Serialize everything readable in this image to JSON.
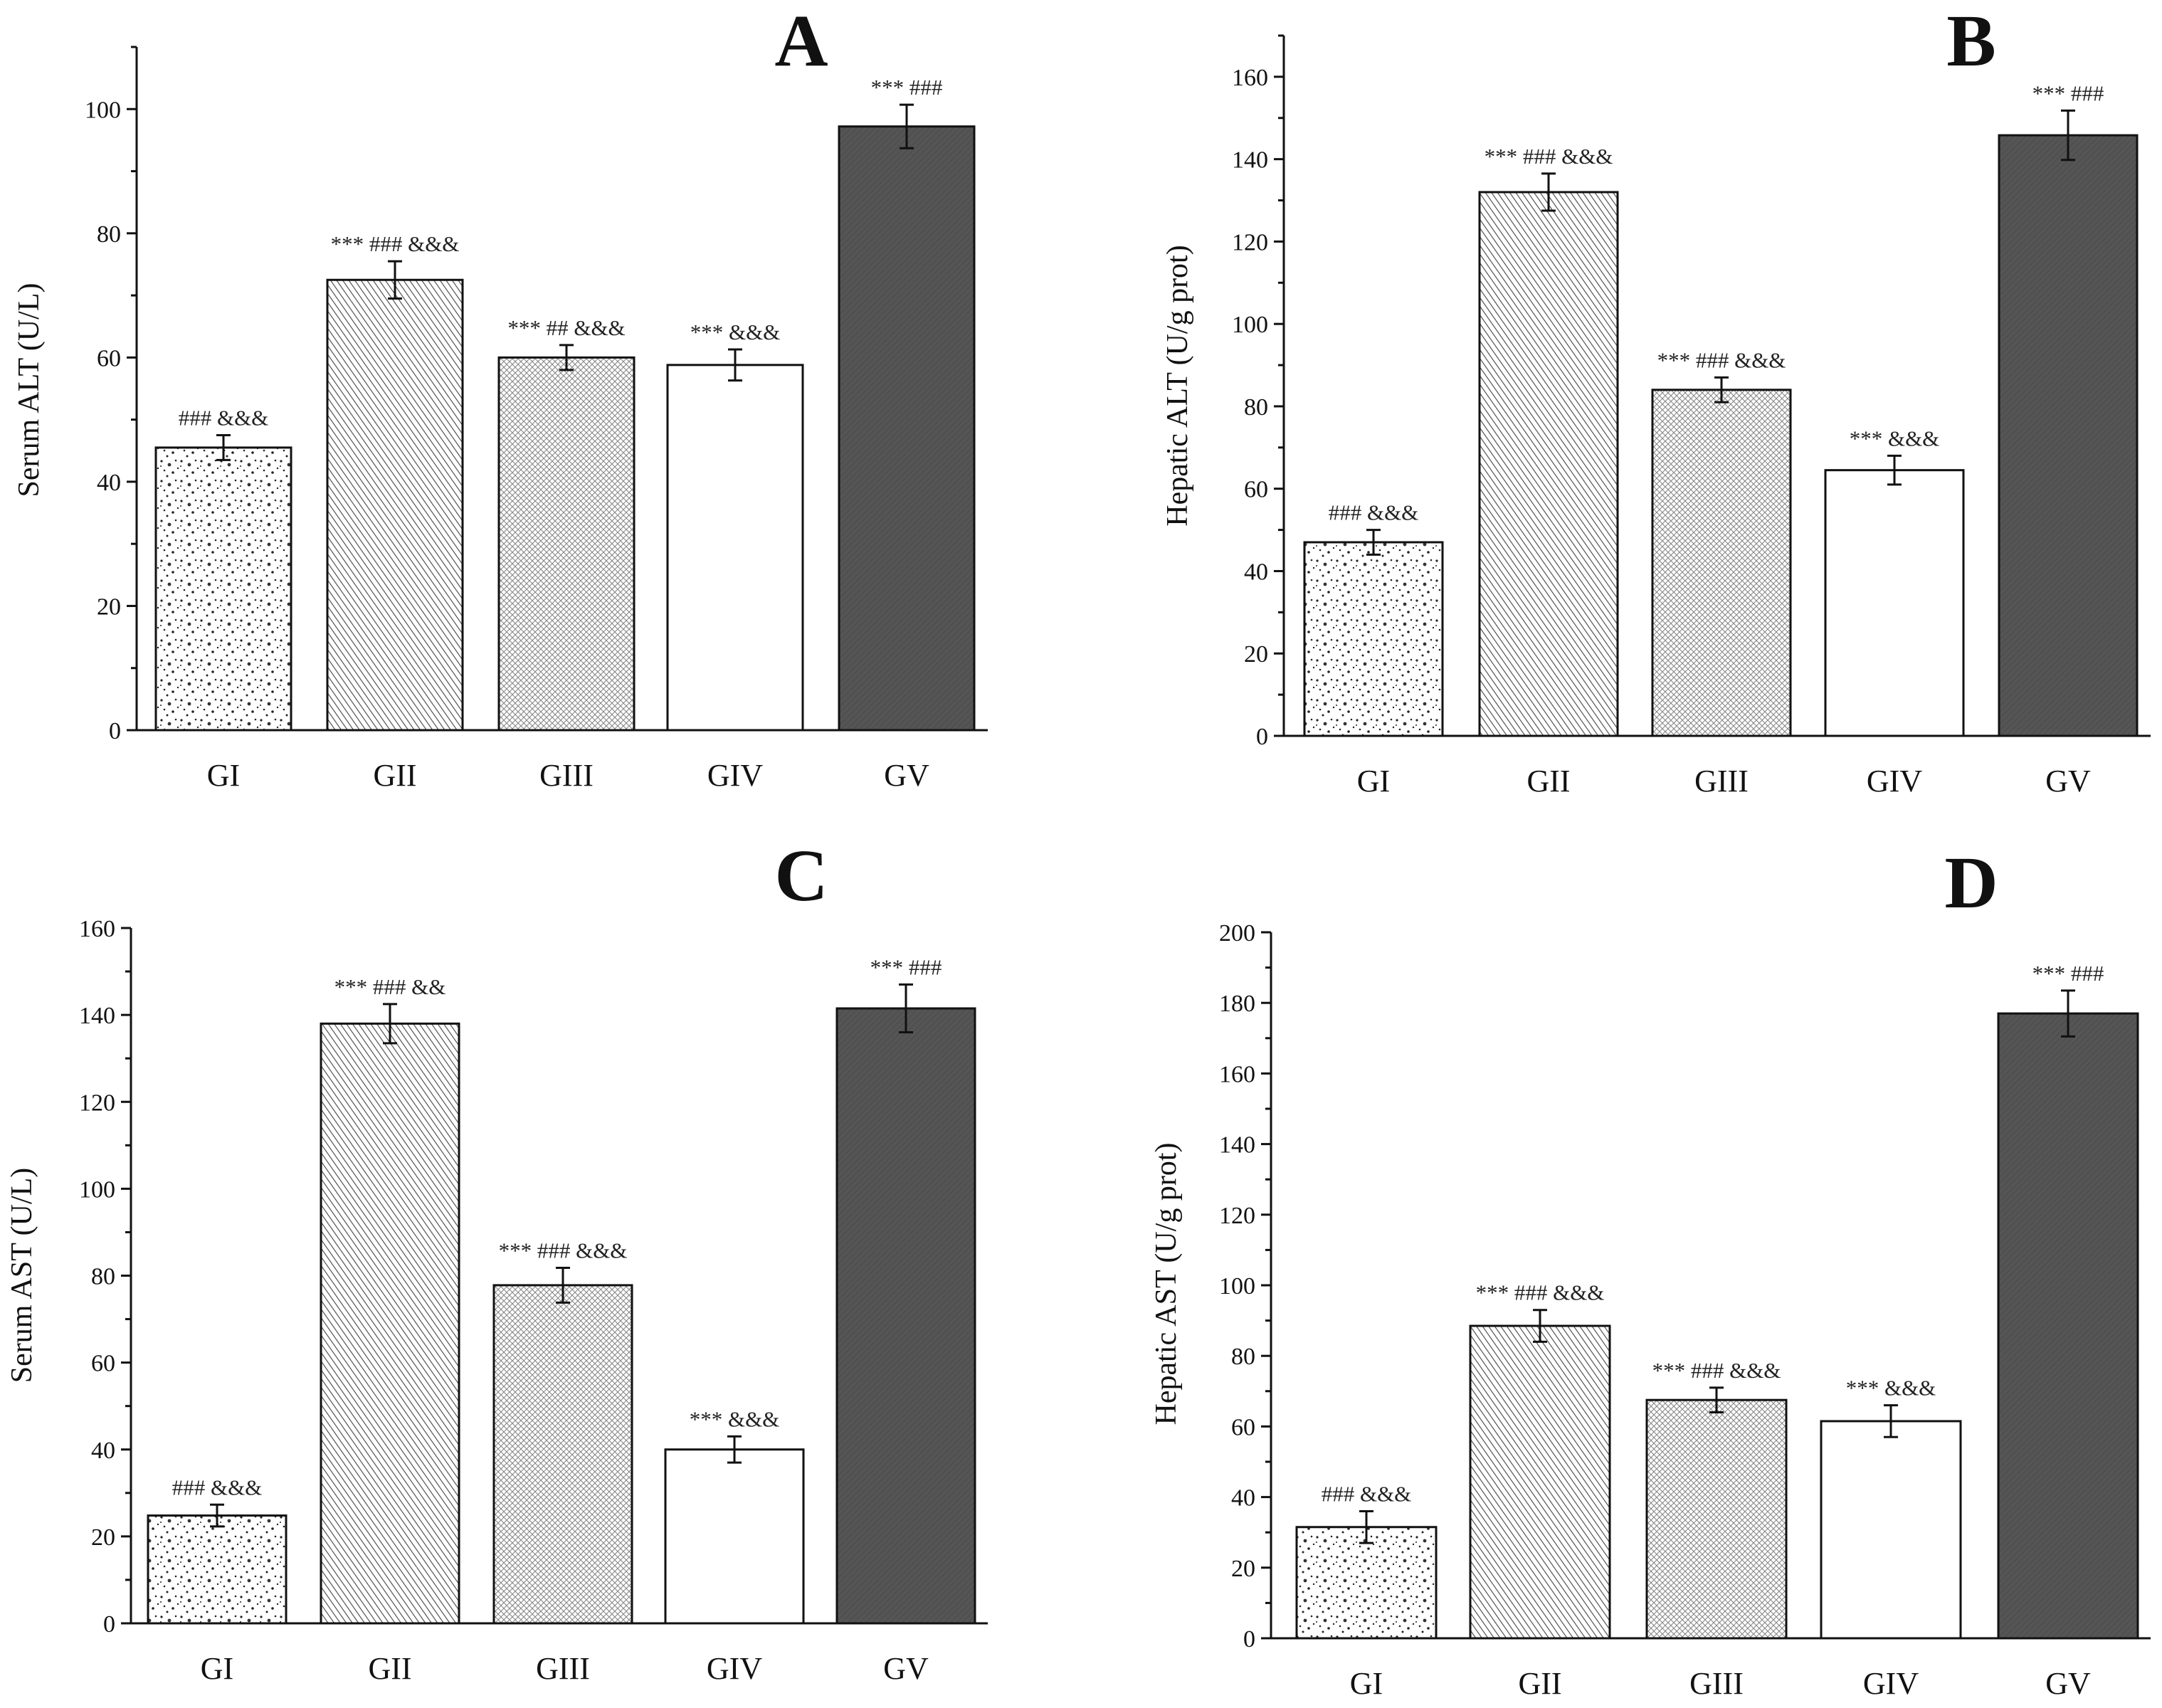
{
  "chart_data": [
    {
      "panel": "A",
      "type": "bar",
      "ylabel": "Serum ALT (U/L)",
      "ylim": [
        0,
        110
      ],
      "yticks": [
        0,
        20,
        40,
        60,
        80,
        100
      ],
      "categories": [
        "GI",
        "GII",
        "GIII",
        "GIV",
        "GV"
      ],
      "values": [
        45.5,
        72.5,
        60.0,
        58.8,
        97.2
      ],
      "errors": [
        2.0,
        3.0,
        2.0,
        2.5,
        3.5
      ],
      "annotations": [
        "### &&&",
        "*** ### &&&",
        "*** ## &&&",
        "*** &&&",
        "*** ###"
      ]
    },
    {
      "panel": "B",
      "type": "bar",
      "ylabel": "Hepatic ALT (U/g prot)",
      "ylim": [
        0,
        170
      ],
      "yticks": [
        0,
        20,
        40,
        60,
        80,
        100,
        120,
        140,
        160
      ],
      "categories": [
        "GI",
        "GII",
        "GIII",
        "GIV",
        "GV"
      ],
      "values": [
        47.0,
        132.0,
        84.0,
        64.5,
        145.8
      ],
      "errors": [
        3.0,
        4.5,
        3.0,
        3.5,
        6.0
      ],
      "annotations": [
        "### &&&",
        "*** ### &&&",
        "*** ### &&&",
        "*** &&&",
        "*** ###"
      ]
    },
    {
      "panel": "C",
      "type": "bar",
      "ylabel": "Serum AST (U/L)",
      "ylim": [
        0,
        160
      ],
      "yticks": [
        0,
        20,
        40,
        60,
        80,
        100,
        120,
        140,
        160
      ],
      "categories": [
        "GI",
        "GII",
        "GIII",
        "GIV",
        "GV"
      ],
      "values": [
        24.8,
        138.0,
        77.8,
        40.0,
        141.5
      ],
      "errors": [
        2.5,
        4.5,
        4.0,
        3.0,
        5.5
      ],
      "annotations": [
        "### &&&",
        "*** ### &&",
        "*** ### &&&",
        "*** &&&",
        "*** ###"
      ]
    },
    {
      "panel": "D",
      "type": "bar",
      "ylabel": "Hepatic AST (U/g prot)",
      "ylim": [
        0,
        200
      ],
      "yticks": [
        0,
        20,
        40,
        60,
        80,
        100,
        120,
        140,
        160,
        180,
        200
      ],
      "categories": [
        "GI",
        "GII",
        "GIII",
        "GIV",
        "GV"
      ],
      "values": [
        31.5,
        88.5,
        67.5,
        61.5,
        177.0
      ],
      "errors": [
        4.5,
        4.5,
        3.5,
        4.5,
        6.5
      ],
      "annotations": [
        "### &&&",
        "*** ### &&&",
        "*** ### &&&",
        "*** &&&",
        "*** ###"
      ]
    }
  ]
}
